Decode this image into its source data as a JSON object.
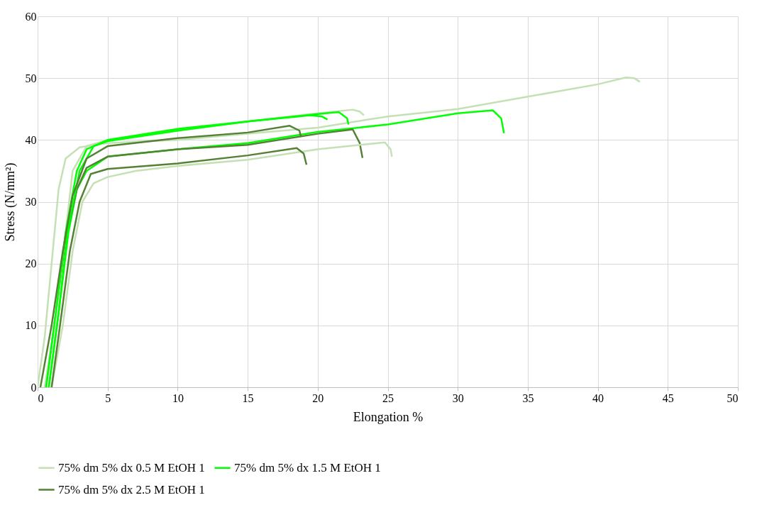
{
  "chart_data": {
    "type": "line",
    "xlabel": "Elongation %",
    "ylabel": "Stress (N/mm²)",
    "xlim": [
      0,
      50
    ],
    "ylim": [
      0,
      60
    ],
    "xticks": [
      0,
      5,
      10,
      15,
      20,
      25,
      30,
      35,
      40,
      45,
      50
    ],
    "yticks": [
      0,
      10,
      20,
      30,
      40,
      50,
      60
    ],
    "grid": true,
    "legend": "bottom",
    "series": [
      {
        "name": "75% dm 5% dx 0.5 M EtOH 1",
        "color": "#c5e0b4",
        "x": [
          0,
          0.5,
          1,
          1.5,
          2,
          3,
          5,
          10,
          15,
          20,
          25,
          30,
          35,
          40,
          42,
          42.6,
          43
        ],
        "values": [
          0,
          8,
          20,
          32,
          37,
          38.8,
          39.5,
          40,
          41,
          42,
          43.8,
          45,
          47,
          49,
          50.1,
          50,
          49.4
        ]
      },
      {
        "color": "#c5e0b4",
        "x": [
          0.5,
          1.2,
          2,
          2.5,
          3.5,
          5,
          10,
          15,
          20,
          22.5,
          23,
          23.3
        ],
        "values": [
          0,
          10,
          25,
          35,
          39,
          40,
          41.5,
          43,
          44.3,
          44.9,
          44.6,
          44
        ]
      },
      {
        "color": "#c5e0b4",
        "x": [
          1,
          1.8,
          2.5,
          3.2,
          4,
          5,
          7,
          10,
          15,
          20,
          24.8,
          25.2,
          25.3
        ],
        "values": [
          0,
          10,
          22,
          30,
          33,
          34,
          35,
          35.8,
          36.8,
          38.5,
          39.6,
          38.5,
          37.3
        ]
      },
      {
        "name": "75% dm 5% dx 1.5 M EtOH 1",
        "color": "#00ff00",
        "x": [
          0.8,
          1.5,
          2.2,
          2.8,
          3.5,
          5,
          10,
          15,
          20,
          25,
          30,
          32.5,
          33.1,
          33.3
        ],
        "values": [
          0,
          12,
          25,
          32,
          35,
          37.3,
          38.5,
          39.5,
          41.3,
          42.5,
          44.3,
          44.8,
          43.5,
          41.1
        ]
      },
      {
        "color": "#00ff00",
        "x": [
          0.6,
          1.3,
          2,
          2.8,
          3.5,
          5,
          10,
          15,
          20,
          21.5,
          22.1,
          22.2
        ],
        "values": [
          0,
          12,
          25,
          35,
          38.5,
          40,
          41.8,
          43,
          44.2,
          44.5,
          43.5,
          42.5
        ]
      },
      {
        "color": "#00ff00",
        "x": [
          0.8,
          1.5,
          2.2,
          3,
          4,
          5,
          10,
          15,
          19.5,
          20.3,
          20.7
        ],
        "values": [
          0,
          12,
          26,
          35,
          39,
          39.8,
          41.5,
          43,
          44,
          43.8,
          43.3
        ]
      },
      {
        "name": "75% dm 5% dx 2.5 M EtOH 1",
        "color": "#548235",
        "x": [
          0.6,
          1.3,
          2,
          2.8,
          3.5,
          5,
          10,
          15,
          20,
          22.5,
          23,
          23.2
        ],
        "values": [
          0,
          12,
          24,
          32,
          35.5,
          37.3,
          38.5,
          39.2,
          41,
          41.7,
          39.5,
          37.1
        ]
      },
      {
        "color": "#548235",
        "x": [
          1,
          1.6,
          2.3,
          3,
          3.8,
          5,
          10,
          15,
          18.5,
          19,
          19.2
        ],
        "values": [
          0,
          10,
          22,
          30,
          34.5,
          35.3,
          36.2,
          37.5,
          38.7,
          37.8,
          36
        ]
      },
      {
        "color": "#548235",
        "x": [
          0.2,
          1,
          1.8,
          2.5,
          3.5,
          5,
          10,
          15,
          18,
          18.7,
          18.8
        ],
        "values": [
          0,
          10,
          22,
          31,
          37,
          39,
          40.3,
          41.2,
          42.3,
          41.5,
          40.5
        ]
      }
    ]
  }
}
